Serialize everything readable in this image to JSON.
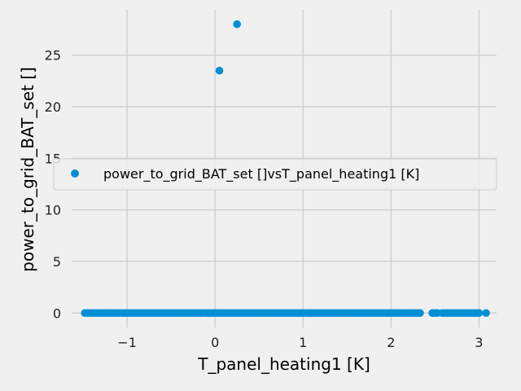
{
  "chart_data": {
    "type": "scatter",
    "xlabel": "T_panel_heating1 [K]",
    "ylabel": "power_to_grid_BAT_set []",
    "xlim": [
      -1.63,
      3.2
    ],
    "ylim": [
      -1.4,
      29.4
    ],
    "xticks": [
      -1,
      0,
      1,
      2,
      3
    ],
    "xtick_labels": [
      "−1",
      "0",
      "1",
      "2",
      "3"
    ],
    "yticks": [
      0,
      5,
      10,
      15,
      20,
      25
    ],
    "ytick_labels": [
      "0",
      "5",
      "10",
      "15",
      "20",
      "25"
    ],
    "grid": true,
    "legend": {
      "entries": [
        "power_to_grid_BAT_set []vsT_panel_heating1 [K]"
      ],
      "placement": "center-left"
    },
    "series": [
      {
        "name": "power_to_grid_BAT_set []vsT_panel_heating1 [K]",
        "color": "#008fd5",
        "points": [
          [
            0.05,
            23.5
          ],
          [
            0.25,
            28.0
          ],
          [
            -1.48,
            0
          ],
          [
            -1.45,
            0
          ],
          [
            -1.42,
            0
          ],
          [
            -1.39,
            0
          ],
          [
            -1.36,
            0
          ],
          [
            -1.33,
            0
          ],
          [
            -1.3,
            0
          ],
          [
            -1.27,
            0
          ],
          [
            -1.24,
            0
          ],
          [
            -1.21,
            0
          ],
          [
            -1.18,
            0
          ],
          [
            -1.15,
            0
          ],
          [
            -1.12,
            0
          ],
          [
            -1.09,
            0
          ],
          [
            -1.06,
            0
          ],
          [
            -1.03,
            0
          ],
          [
            -1.0,
            0
          ],
          [
            -0.97,
            0
          ],
          [
            -0.94,
            0
          ],
          [
            -0.91,
            0
          ],
          [
            -0.88,
            0
          ],
          [
            -0.85,
            0
          ],
          [
            -0.82,
            0
          ],
          [
            -0.79,
            0
          ],
          [
            -0.76,
            0
          ],
          [
            -0.73,
            0
          ],
          [
            -0.7,
            0
          ],
          [
            -0.67,
            0
          ],
          [
            -0.64,
            0
          ],
          [
            -0.61,
            0
          ],
          [
            -0.58,
            0
          ],
          [
            -0.55,
            0
          ],
          [
            -0.52,
            0
          ],
          [
            -0.49,
            0
          ],
          [
            -0.46,
            0
          ],
          [
            -0.43,
            0
          ],
          [
            -0.4,
            0
          ],
          [
            -0.37,
            0
          ],
          [
            -0.34,
            0
          ],
          [
            -0.31,
            0
          ],
          [
            -0.28,
            0
          ],
          [
            -0.25,
            0
          ],
          [
            -0.22,
            0
          ],
          [
            -0.19,
            0
          ],
          [
            -0.16,
            0
          ],
          [
            -0.13,
            0
          ],
          [
            -0.1,
            0
          ],
          [
            -0.07,
            0
          ],
          [
            -0.04,
            0
          ],
          [
            -0.01,
            0
          ],
          [
            0.02,
            0
          ],
          [
            0.05,
            0
          ],
          [
            0.08,
            0
          ],
          [
            0.11,
            0
          ],
          [
            0.14,
            0
          ],
          [
            0.17,
            0
          ],
          [
            0.2,
            0
          ],
          [
            0.23,
            0
          ],
          [
            0.26,
            0
          ],
          [
            0.29,
            0
          ],
          [
            0.32,
            0
          ],
          [
            0.35,
            0
          ],
          [
            0.38,
            0
          ],
          [
            0.41,
            0
          ],
          [
            0.44,
            0
          ],
          [
            0.47,
            0
          ],
          [
            0.5,
            0
          ],
          [
            0.53,
            0
          ],
          [
            0.56,
            0
          ],
          [
            0.59,
            0
          ],
          [
            0.62,
            0
          ],
          [
            0.65,
            0
          ],
          [
            0.68,
            0
          ],
          [
            0.71,
            0
          ],
          [
            0.74,
            0
          ],
          [
            0.77,
            0
          ],
          [
            0.8,
            0
          ],
          [
            0.83,
            0
          ],
          [
            0.86,
            0
          ],
          [
            0.89,
            0
          ],
          [
            0.92,
            0
          ],
          [
            0.95,
            0
          ],
          [
            0.98,
            0
          ],
          [
            1.01,
            0
          ],
          [
            1.04,
            0
          ],
          [
            1.07,
            0
          ],
          [
            1.1,
            0
          ],
          [
            1.13,
            0
          ],
          [
            1.16,
            0
          ],
          [
            1.19,
            0
          ],
          [
            1.22,
            0
          ],
          [
            1.25,
            0
          ],
          [
            1.28,
            0
          ],
          [
            1.31,
            0
          ],
          [
            1.34,
            0
          ],
          [
            1.37,
            0
          ],
          [
            1.4,
            0
          ],
          [
            1.43,
            0
          ],
          [
            1.46,
            0
          ],
          [
            1.49,
            0
          ],
          [
            1.52,
            0
          ],
          [
            1.55,
            0
          ],
          [
            1.58,
            0
          ],
          [
            1.61,
            0
          ],
          [
            1.64,
            0
          ],
          [
            1.67,
            0
          ],
          [
            1.7,
            0
          ],
          [
            1.73,
            0
          ],
          [
            1.76,
            0
          ],
          [
            1.79,
            0
          ],
          [
            1.82,
            0
          ],
          [
            1.85,
            0
          ],
          [
            1.88,
            0
          ],
          [
            1.91,
            0
          ],
          [
            1.94,
            0
          ],
          [
            1.97,
            0
          ],
          [
            2.0,
            0
          ],
          [
            2.03,
            0
          ],
          [
            2.06,
            0
          ],
          [
            2.09,
            0
          ],
          [
            2.12,
            0
          ],
          [
            2.15,
            0
          ],
          [
            2.18,
            0
          ],
          [
            2.21,
            0
          ],
          [
            2.24,
            0
          ],
          [
            2.27,
            0
          ],
          [
            2.3,
            0
          ],
          [
            2.33,
            0
          ],
          [
            2.47,
            0
          ],
          [
            2.5,
            0
          ],
          [
            2.53,
            0
          ],
          [
            2.58,
            0
          ],
          [
            2.61,
            0
          ],
          [
            2.64,
            0
          ],
          [
            2.67,
            0
          ],
          [
            2.7,
            0
          ],
          [
            2.73,
            0
          ],
          [
            2.76,
            0
          ],
          [
            2.79,
            0
          ],
          [
            2.82,
            0
          ],
          [
            2.85,
            0
          ],
          [
            2.88,
            0
          ],
          [
            2.91,
            0
          ],
          [
            2.94,
            0
          ],
          [
            2.97,
            0
          ],
          [
            3.0,
            0
          ],
          [
            3.08,
            0
          ]
        ]
      }
    ]
  }
}
